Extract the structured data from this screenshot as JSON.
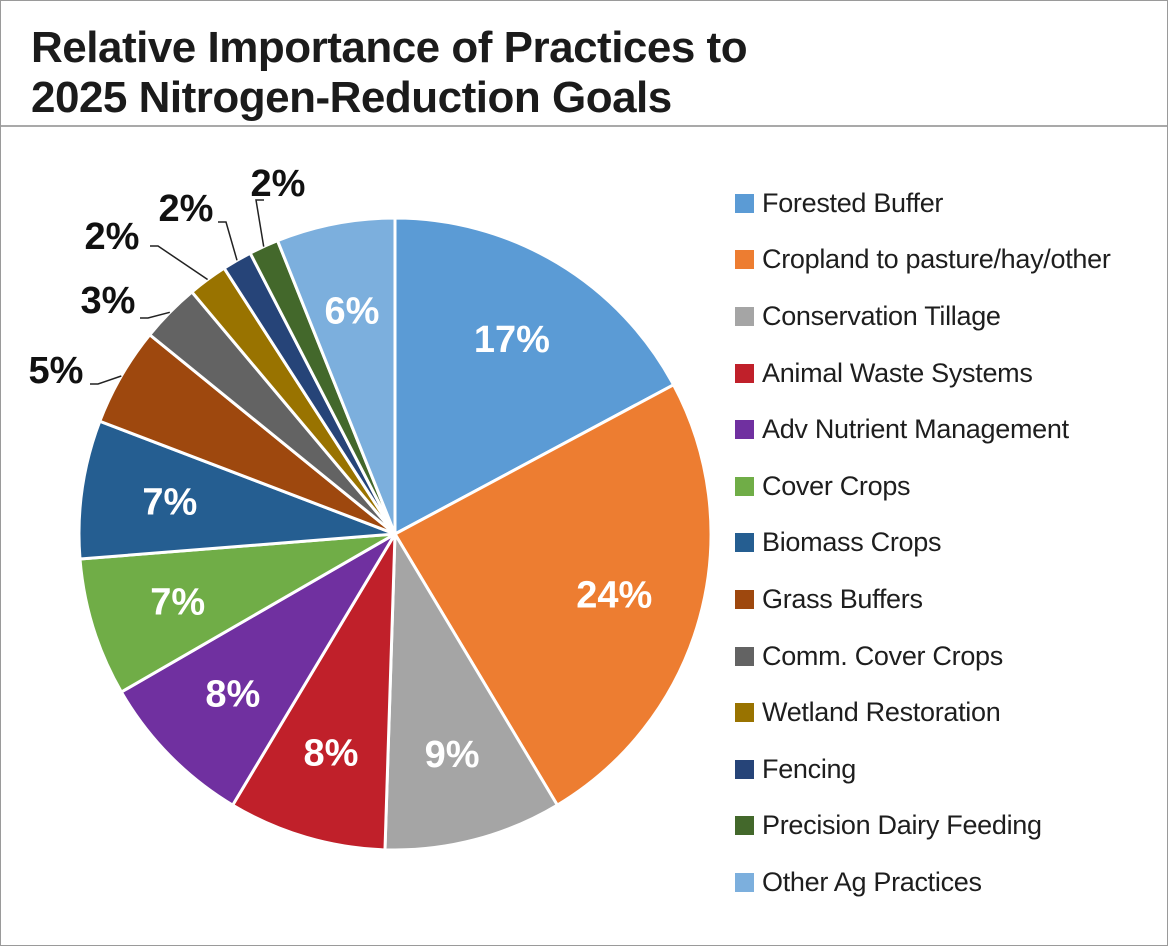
{
  "chart_data": {
    "type": "pie",
    "title": "Relative Importance of Practices to\n2025 Nitrogen-Reduction Goals",
    "start_angle_deg": 0,
    "direction": "clockwise",
    "slices": [
      {
        "label": "Forested Buffer",
        "value": 17,
        "display": "17%",
        "color": "#5b9bd5",
        "label_color": "#ffffff",
        "label_mode": "inside"
      },
      {
        "label": "Cropland to pasture/hay/other",
        "value": 24,
        "display": "24%",
        "color": "#ed7d31",
        "label_color": "#ffffff",
        "label_mode": "inside"
      },
      {
        "label": "Conservation Tillage",
        "value": 9,
        "display": "9%",
        "color": "#a5a5a5",
        "label_color": "#ffffff",
        "label_mode": "inside"
      },
      {
        "label": "Animal Waste Systems",
        "value": 8,
        "display": "8%",
        "color": "#c0202a",
        "label_color": "#ffffff",
        "label_mode": "inside"
      },
      {
        "label": "Adv Nutrient Management",
        "value": 8,
        "display": "8%",
        "color": "#7030a0",
        "label_color": "#ffffff",
        "label_mode": "inside"
      },
      {
        "label": "Cover Crops",
        "value": 7,
        "display": "7%",
        "color": "#70ad47",
        "label_color": "#ffffff",
        "label_mode": "inside"
      },
      {
        "label": "Biomass Crops",
        "value": 7,
        "display": "7%",
        "color": "#255e91",
        "label_color": "#ffffff",
        "label_mode": "inside"
      },
      {
        "label": "Grass Buffers",
        "value": 5,
        "display": "5%",
        "color": "#9e480e",
        "label_color": "#111111",
        "label_mode": "outside"
      },
      {
        "label": "Comm. Cover Crops",
        "value": 3,
        "display": "3%",
        "color": "#636363",
        "label_color": "#111111",
        "label_mode": "outside"
      },
      {
        "label": "Wetland Restoration",
        "value": 2,
        "display": "2%",
        "color": "#997300",
        "label_color": "#111111",
        "label_mode": "outside"
      },
      {
        "label": "Fencing",
        "value": 1.5,
        "display": "2%",
        "color": "#264478",
        "label_color": "#111111",
        "label_mode": "outside"
      },
      {
        "label": "Precision Dairy Feeding",
        "value": 1.5,
        "display": "2%",
        "color": "#43682b",
        "label_color": "#111111",
        "label_mode": "outside"
      },
      {
        "label": "Other Ag Practices",
        "value": 6,
        "display": "6%",
        "color": "#7cafdd",
        "label_color": "#ffffff",
        "label_mode": "inside"
      }
    ],
    "legend_position": "right"
  }
}
